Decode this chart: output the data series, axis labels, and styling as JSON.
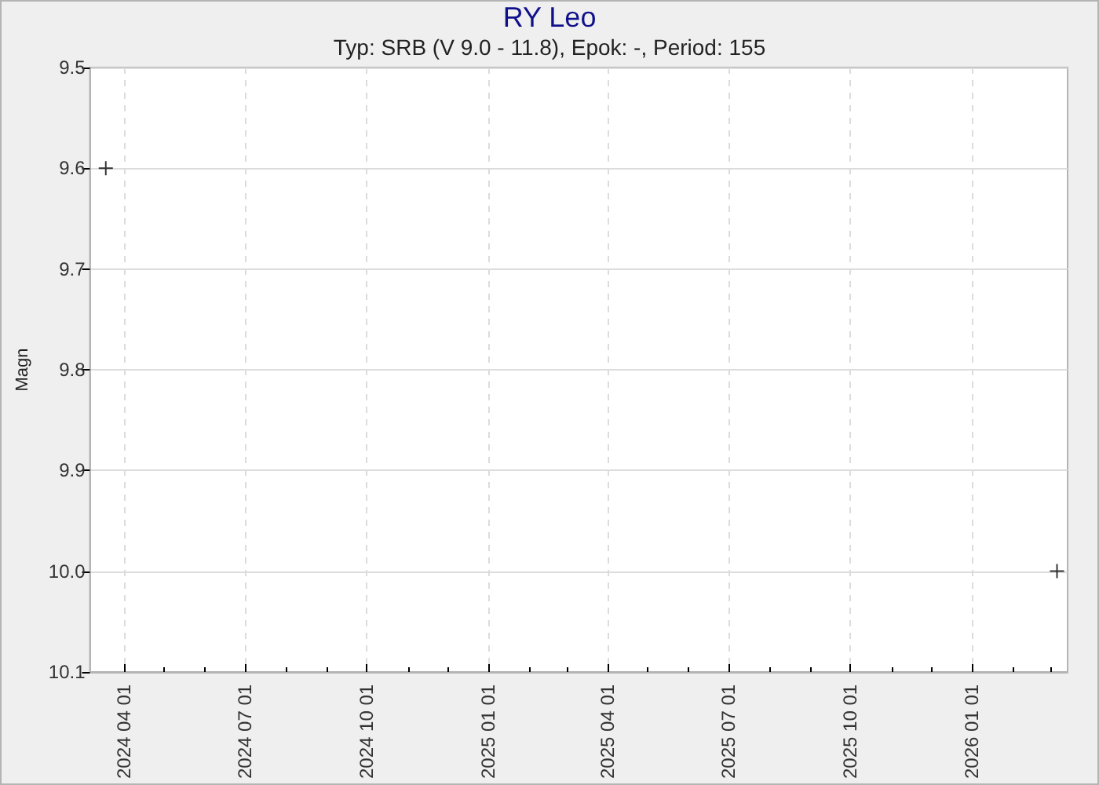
{
  "chart_data": {
    "type": "scatter",
    "title": "RY Leo",
    "subtitle": "Typ: SRB (V 9.0 - 11.8), Epok: -, Period: 155",
    "ylabel": "Magn",
    "x": [
      "2024-03-18",
      "2026-03-06"
    ],
    "series": [
      {
        "color": "#000000",
        "values": [
          9.6,
          10.0
        ]
      }
    ],
    "xlim": [
      "2024-03-06",
      "2026-03-14"
    ],
    "xticks": [
      {
        "value": "2024-04-01",
        "label": "2024 04 01"
      },
      {
        "value": "2024-05-01",
        "label": null
      },
      {
        "value": "2024-06-01",
        "label": null
      },
      {
        "value": "2024-07-01",
        "label": "2024 07 01"
      },
      {
        "value": "2024-08-01",
        "label": null
      },
      {
        "value": "2024-09-01",
        "label": null
      },
      {
        "value": "2024-10-01",
        "label": "2024 10 01"
      },
      {
        "value": "2024-11-01",
        "label": null
      },
      {
        "value": "2024-12-01",
        "label": null
      },
      {
        "value": "2025-01-01",
        "label": "2025 01 01"
      },
      {
        "value": "2025-02-01",
        "label": null
      },
      {
        "value": "2025-03-01",
        "label": null
      },
      {
        "value": "2025-04-01",
        "label": "2025 04 01"
      },
      {
        "value": "2025-05-01",
        "label": null
      },
      {
        "value": "2025-06-01",
        "label": null
      },
      {
        "value": "2025-07-01",
        "label": "2025 07 01"
      },
      {
        "value": "2025-08-01",
        "label": null
      },
      {
        "value": "2025-09-01",
        "label": null
      },
      {
        "value": "2025-10-01",
        "label": "2025 10 01"
      },
      {
        "value": "2025-11-01",
        "label": null
      },
      {
        "value": "2025-12-01",
        "label": null
      },
      {
        "value": "2026-01-01",
        "label": "2026 01 01"
      },
      {
        "value": "2026-02-01",
        "label": null
      },
      {
        "value": "2026-03-01",
        "label": null
      }
    ],
    "ylim": [
      10.1,
      9.5
    ],
    "yticks": [
      9.5,
      9.6,
      9.7,
      9.8,
      9.9,
      {
        "value": 10,
        "label": "10.0"
      },
      10.1
    ],
    "grid": true,
    "marker": "cross"
  }
}
